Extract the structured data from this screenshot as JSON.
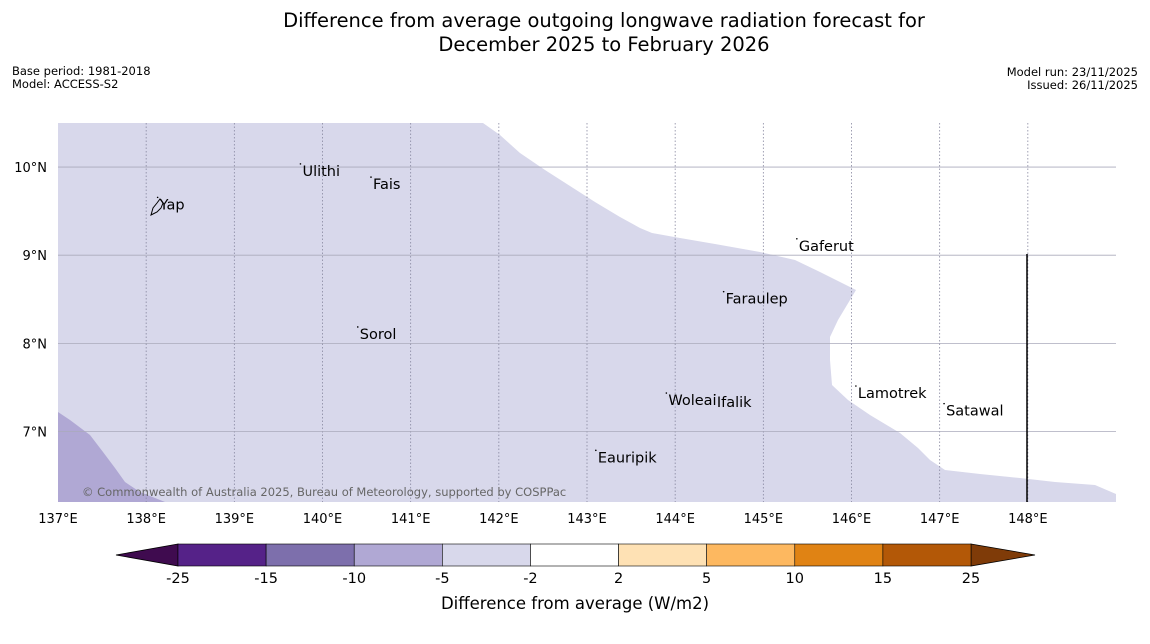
{
  "title_line1": "Difference from average outgoing longwave radiation forecast for",
  "title_line2": "December 2025 to February 2026",
  "meta_left": {
    "base_period": "Base period: 1981-2018",
    "model": "Model: ACCESS-S2"
  },
  "meta_right": {
    "model_run": "Model run: 23/11/2025",
    "issued": "Issued: 26/11/2025"
  },
  "copyright": "© Commonwealth of Australia 2025, Bureau of Meteorology, supported by COSPPac",
  "colors": {
    "neg25": "#3f0b4f",
    "neg25_15": "#552288",
    "neg15_10": "#7d6fac",
    "neg10_5": "#b0a8d4",
    "neg5_2": "#d8d8eb",
    "neutral": "#ffffff",
    "pos2_5": "#fee1b4",
    "pos5_10": "#fdb860",
    "pos10_15": "#e08314",
    "pos15_25": "#b35807",
    "pos25": "#7f3b08"
  },
  "chart_data": {
    "type": "map",
    "lon_range": [
      137,
      149
    ],
    "lat_range": [
      6.2,
      10.5
    ],
    "lon_ticks": [
      "137°E",
      "138°E",
      "139°E",
      "140°E",
      "141°E",
      "142°E",
      "143°E",
      "144°E",
      "145°E",
      "146°E",
      "147°E",
      "148°E"
    ],
    "lat_ticks": [
      "10°N",
      "9°N",
      "8°N",
      "7°N"
    ],
    "lon_values": [
      137,
      138,
      139,
      140,
      141,
      142,
      143,
      144,
      145,
      146,
      147,
      148
    ],
    "lat_values": [
      10,
      9,
      8,
      7
    ],
    "places": [
      {
        "name": "Ulithi",
        "lon": 139.75,
        "lat": 9.9
      },
      {
        "name": "Fais",
        "lon": 140.55,
        "lat": 9.75
      },
      {
        "name": "Yap",
        "lon": 138.13,
        "lat": 9.52
      },
      {
        "name": "Gaferut",
        "lon": 145.38,
        "lat": 9.05
      },
      {
        "name": "Faraulep",
        "lon": 144.55,
        "lat": 8.45
      },
      {
        "name": "Sorol",
        "lon": 140.4,
        "lat": 8.05
      },
      {
        "name": "Lamotrek",
        "lon": 146.05,
        "lat": 7.38
      },
      {
        "name": "Woleai",
        "lon": 143.9,
        "lat": 7.3
      },
      {
        "name": "Ifalik",
        "lon": 144.45,
        "lat": 7.28
      },
      {
        "name": "Satawal",
        "lon": 147.05,
        "lat": 7.18
      },
      {
        "name": "Eauripik",
        "lon": 143.1,
        "lat": 6.65
      }
    ],
    "colorbar": {
      "ticks": [
        "-25",
        "-15",
        "-10",
        "-5",
        "-2",
        "2",
        "5",
        "10",
        "15",
        "25"
      ],
      "label": "Difference from average (W/m2)"
    }
  }
}
